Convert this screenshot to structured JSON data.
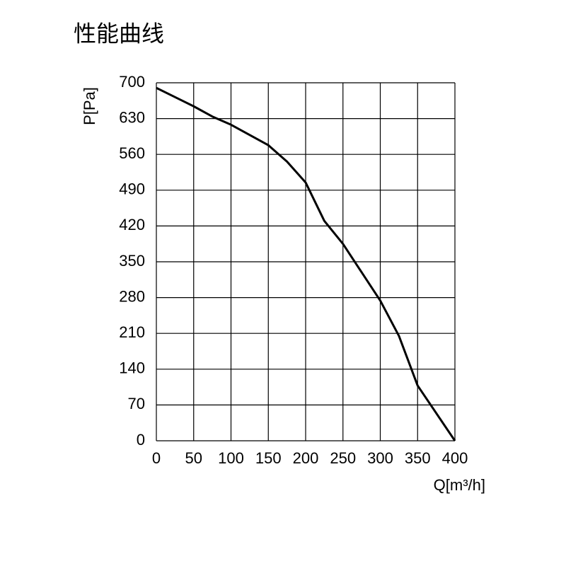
{
  "chart_data": {
    "type": "line",
    "title": "性能曲线",
    "y_label": "P[Pa]",
    "x_label": "Q[m³/h]",
    "x": [
      0,
      50,
      75,
      100,
      150,
      175,
      200,
      225,
      250,
      300,
      325,
      350,
      400
    ],
    "series": [
      {
        "name": "P",
        "color": "#000000",
        "values": [
          690,
          654,
          634,
          618,
          578,
          546,
          505,
          430,
          385,
          274,
          205,
          108,
          0
        ]
      }
    ],
    "xlim": [
      0,
      400
    ],
    "ylim": [
      0,
      700
    ],
    "xticks": [
      0,
      50,
      100,
      150,
      200,
      250,
      300,
      350,
      400
    ],
    "yticks": [
      0,
      70,
      140,
      210,
      280,
      350,
      420,
      490,
      560,
      630,
      700
    ],
    "grid": true
  }
}
